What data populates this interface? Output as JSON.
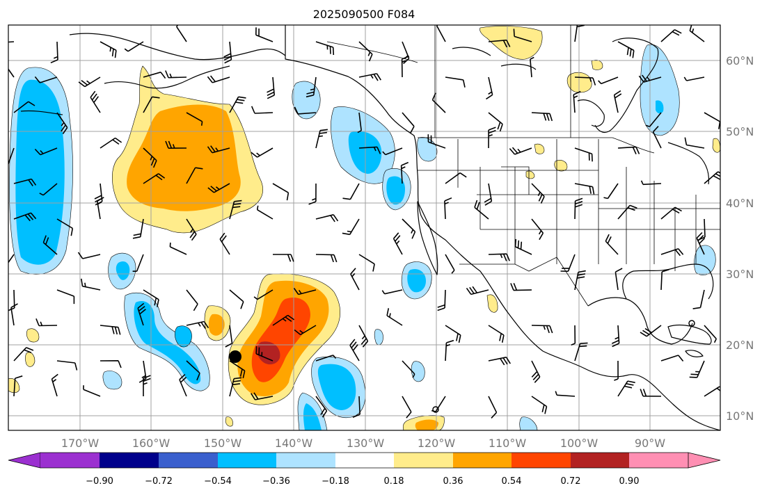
{
  "title": "2025090500 F084",
  "map": {
    "lon_range": [
      -180,
      -80
    ],
    "lat_range": [
      8,
      65
    ],
    "lon_ticks": [
      "170°W",
      "160°W",
      "150°W",
      "140°W",
      "130°W",
      "120°W",
      "110°W",
      "100°W",
      "90°W"
    ],
    "lat_ticks": [
      "10°N",
      "20°N",
      "30°N",
      "40°N",
      "50°N",
      "60°N"
    ],
    "grid": true
  },
  "colorbar": {
    "orientation": "horizontal",
    "extend": "both",
    "ticks": [
      "−0.90",
      "−0.72",
      "−0.54",
      "−0.36",
      "−0.18",
      "0.18",
      "0.36",
      "0.54",
      "0.72",
      "0.90"
    ],
    "colors": [
      "#9b30d0",
      "#00008b",
      "#3a5fcd",
      "#00bfff",
      "#aee3ff",
      "#ffffff",
      "#ffec8b",
      "#ffa500",
      "#ff4500",
      "#b22222",
      "#ff8fb3"
    ]
  },
  "colors": {
    "deep_negative": "#00bfff",
    "light_negative": "#aee3ff",
    "light_positive": "#ffec8b",
    "positive": "#ffa500",
    "strong_positive": "#ff4500",
    "very_strong_positive": "#b22222"
  },
  "markers": [
    {
      "name": "filled-dot",
      "lon": -148,
      "lat": 18.2
    },
    {
      "name": "open-circle",
      "lon": -120,
      "lat": 10.8
    },
    {
      "name": "open-circle",
      "lon": -84,
      "lat": 22.9
    }
  ]
}
